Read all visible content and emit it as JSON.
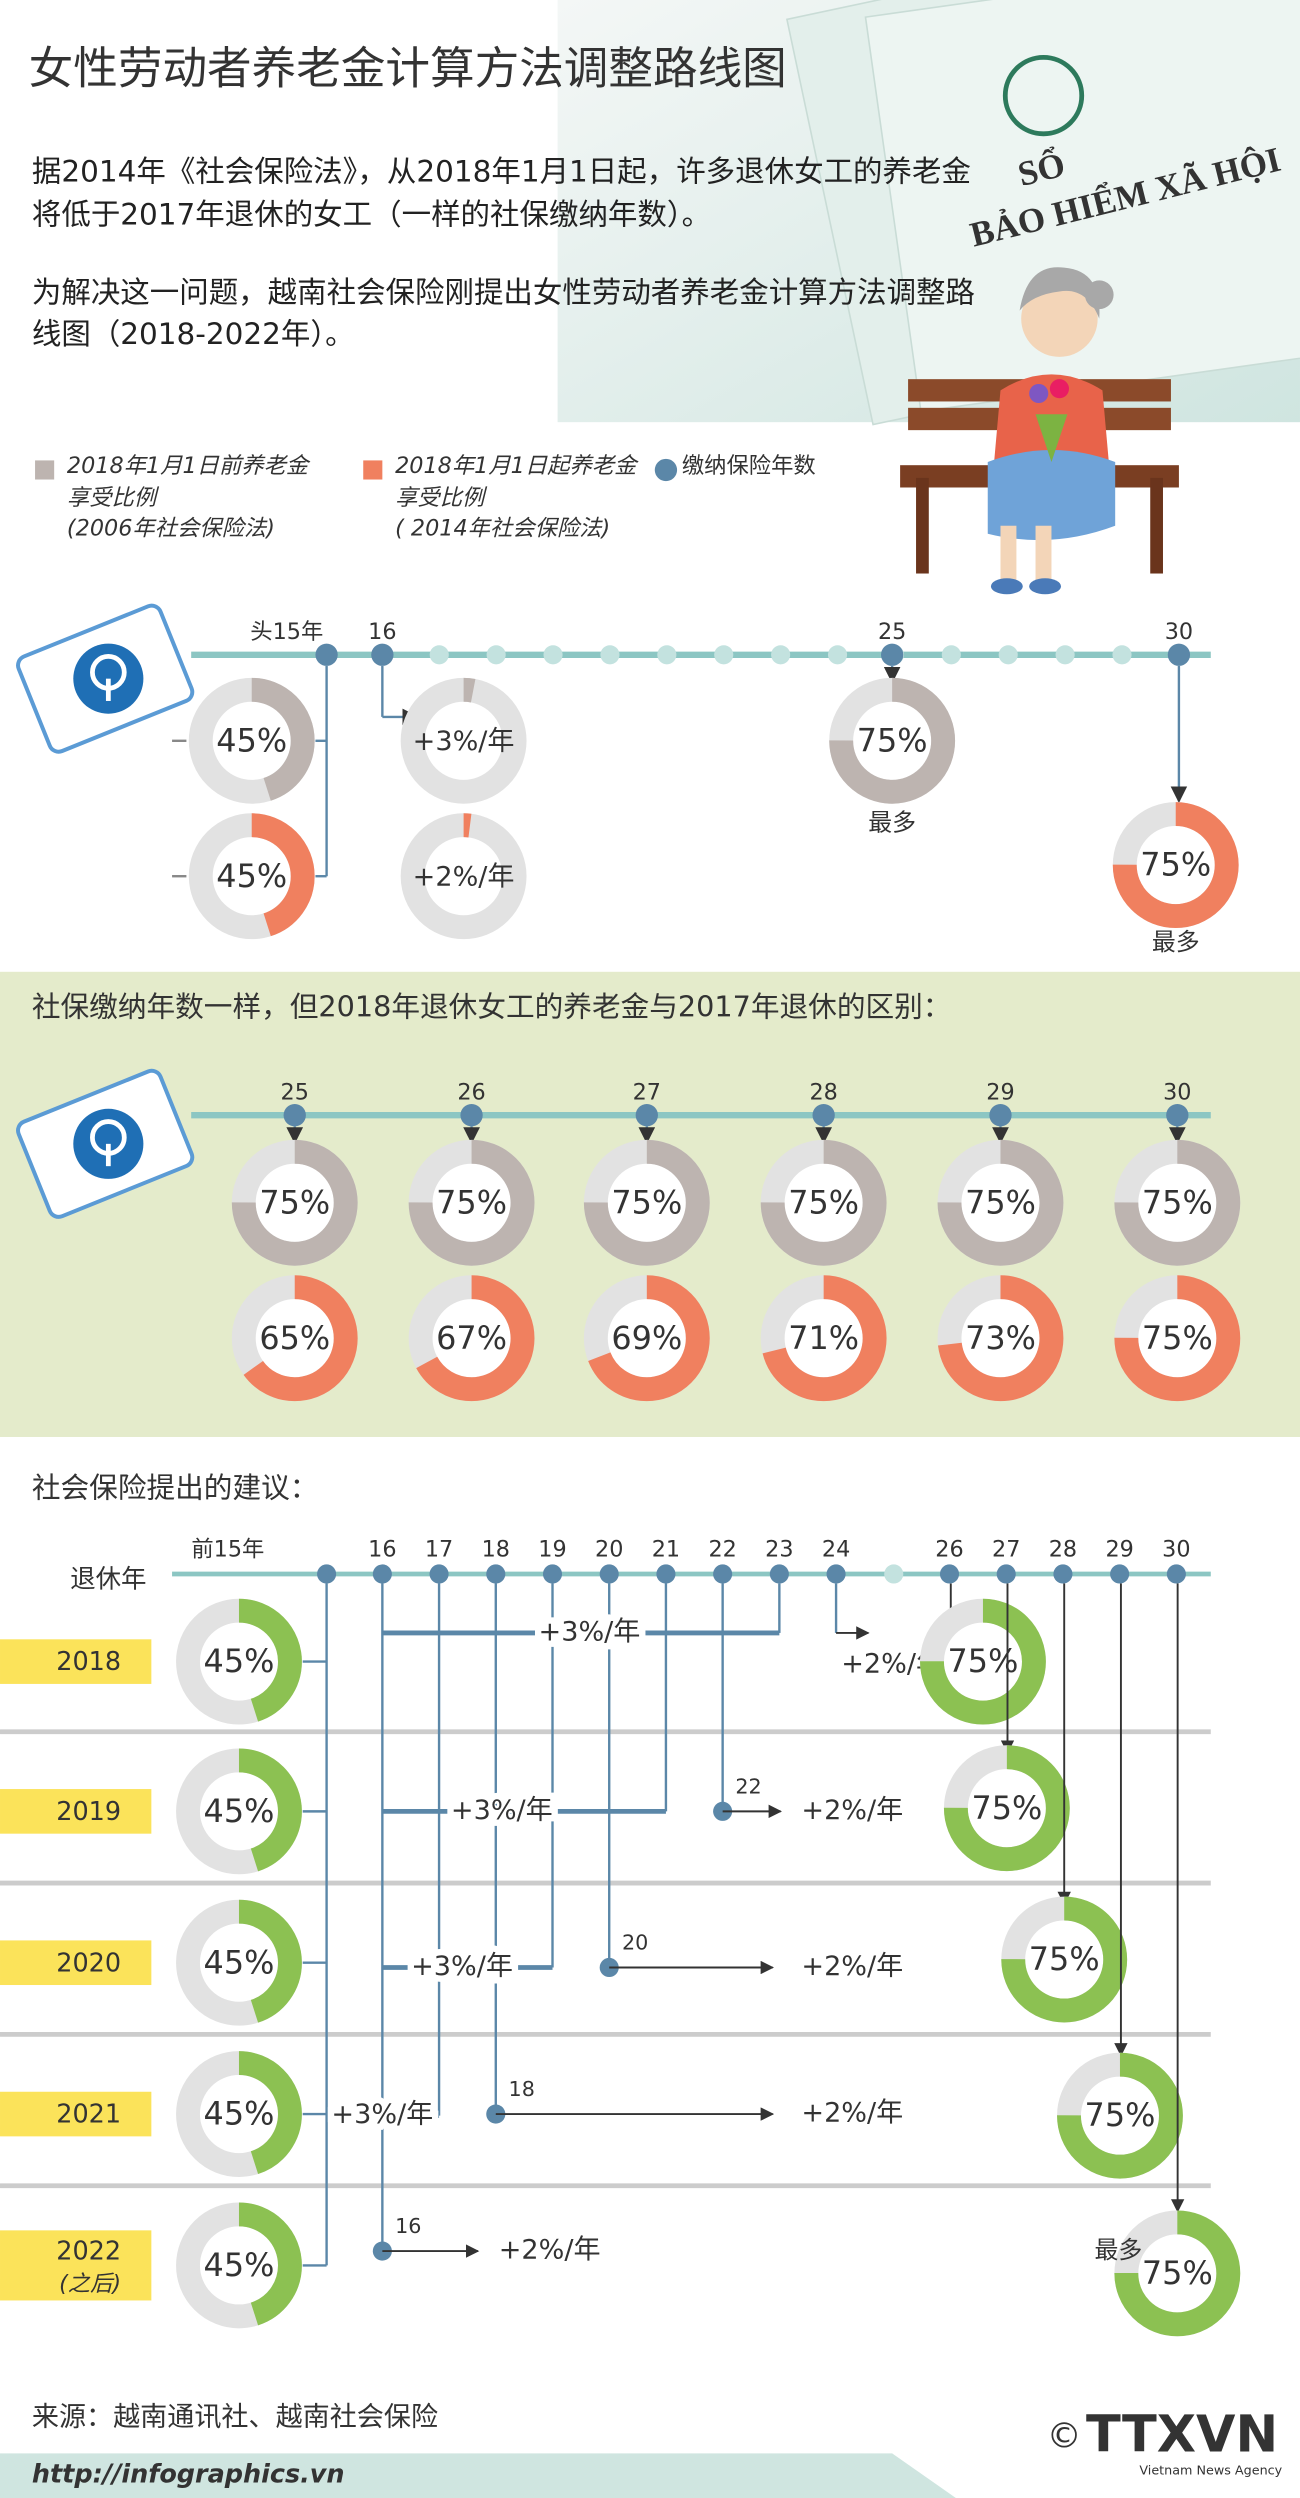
{
  "header": {
    "title": "女性劳动者养老金计算方法调整路线图",
    "background_text": [
      "SỔ",
      "BẢO HIỂM XÃ HỘI"
    ],
    "paragraphs": [
      "据2014年《社会保险法》，从2018年1月1日起，许多退休女工的养老金将低于2017年退休的女工（一样的社保缴纳年数）。",
      "为解决这一问题，越南社会保险刚提出女性劳动者养老金计算方法调整路线图（2018-2022年）。"
    ]
  },
  "legend": [
    {
      "label": "2018年1月1日前养老金享受比例",
      "note": "(2006年社会保险法)",
      "color": "#bdb4b0"
    },
    {
      "label": "2018年1月1日起养老金享受比例",
      "note": "( 2014年社会保险法)",
      "color": "#f0805f"
    },
    {
      "label": "缴纳保险年数",
      "color": "#5b87a8"
    }
  ],
  "overview": {
    "timeline": [
      "头15年",
      "16",
      "25",
      "30"
    ],
    "old": [
      {
        "value": 45,
        "label": "45%"
      },
      {
        "value": 3,
        "label": "+3%/年"
      },
      {
        "value": 75,
        "label": "75%",
        "note": "最多"
      }
    ],
    "new": [
      {
        "value": 45,
        "label": "45%"
      },
      {
        "value": 2,
        "label": "+2%/年"
      },
      {
        "value": 75,
        "label": "75%",
        "note": "最多"
      }
    ]
  },
  "comparison": {
    "title": "社保缴纳年数一样，但2018年退休女工的养老金与2017年退休的区别：",
    "years": [
      "25",
      "26",
      "27",
      "28",
      "29",
      "30"
    ],
    "old": [
      {
        "value": 75,
        "label": "75%"
      },
      {
        "value": 75,
        "label": "75%"
      },
      {
        "value": 75,
        "label": "75%"
      },
      {
        "value": 75,
        "label": "75%"
      },
      {
        "value": 75,
        "label": "75%"
      },
      {
        "value": 75,
        "label": "75%"
      }
    ],
    "new": [
      {
        "value": 65,
        "label": "65%"
      },
      {
        "value": 67,
        "label": "67%"
      },
      {
        "value": 69,
        "label": "69%"
      },
      {
        "value": 71,
        "label": "71%"
      },
      {
        "value": 73,
        "label": "73%"
      },
      {
        "value": 75,
        "label": "75%"
      }
    ]
  },
  "proposal": {
    "title": "社会保险提出的建议：",
    "axis_label": "退休年",
    "first_label": "前15年",
    "color": "#8cc152",
    "years": [
      "16",
      "17",
      "18",
      "19",
      "20",
      "21",
      "22",
      "23",
      "24",
      "26",
      "27",
      "28",
      "29",
      "30"
    ],
    "rows": [
      {
        "year": "2018",
        "donut": {
          "value": 45,
          "label": "45%"
        },
        "high_rate": "+3%/年",
        "low_rate": "+2%/年",
        "final": {
          "value": 75,
          "label": "75%"
        }
      },
      {
        "year": "2019",
        "donut": {
          "value": 45,
          "label": "45%"
        },
        "high_rate": "+3%/年",
        "start": "22",
        "low_rate": "+2%/年",
        "final": {
          "value": 75,
          "label": "75%"
        }
      },
      {
        "year": "2020",
        "donut": {
          "value": 45,
          "label": "45%"
        },
        "high_rate": "+3%/年",
        "start": "20",
        "low_rate": "+2%/年",
        "final": {
          "value": 75,
          "label": "75%"
        }
      },
      {
        "year": "2021",
        "donut": {
          "value": 45,
          "label": "45%"
        },
        "high_rate": "+3%/年",
        "start": "18",
        "low_rate": "+2%/年",
        "final": {
          "value": 75,
          "label": "75%"
        }
      },
      {
        "year": "2022",
        "year_note": "(之后)",
        "donut": {
          "value": 45,
          "label": "45%"
        },
        "start": "16",
        "low_rate": "+2%/年",
        "final": {
          "value": 75,
          "label": "75%",
          "note": "最多"
        }
      }
    ]
  },
  "footer": {
    "source": "来源：越南通讯社、越南社会保险",
    "url": "http://infographics.vn",
    "logo_symbol": "©",
    "logo": "TTXVN",
    "agency": "Vietnam News Agency"
  }
}
